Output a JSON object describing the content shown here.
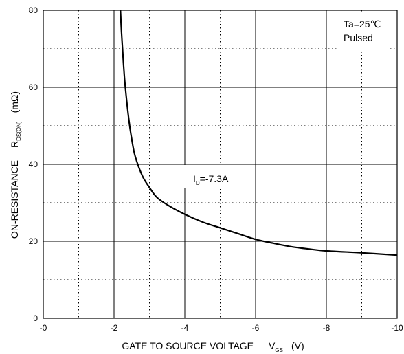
{
  "chart_data": {
    "type": "line",
    "xlabel": "GATE TO SOURCE VOLTAGE",
    "xlabel_symbol": "V",
    "xlabel_subscript": "GS",
    "xlabel_unit": "(V)",
    "ylabel": "ON-RESISTANCE",
    "ylabel_symbol": "R",
    "ylabel_subscript": "DS(ON)",
    "ylabel_unit": "(mΩ)",
    "xlim": [
      0,
      -10
    ],
    "ylim": [
      0,
      80
    ],
    "x_tick_labels": [
      "-0",
      "-2",
      "-4",
      "-6",
      "-8",
      "-10"
    ],
    "x_tick_values": [
      0,
      -2,
      -4,
      -6,
      -8,
      -10
    ],
    "y_tick_labels": [
      "0",
      "20",
      "40",
      "60",
      "80"
    ],
    "y_tick_values": [
      0,
      20,
      40,
      60,
      80
    ],
    "grid": "solid major lines at labeled ticks, dotted minor lines at midpoints",
    "annotations": [
      {
        "text": "Ta=25℃",
        "placement": "top-right"
      },
      {
        "text": "Pulsed",
        "placement": "top-right"
      }
    ],
    "series": [
      {
        "name": "",
        "label_prefix": "I",
        "label_subscript": "D",
        "label_suffix": "=-7.3A",
        "x": [
          -2.18,
          -2.22,
          -2.3,
          -2.4,
          -2.5,
          -2.6,
          -2.8,
          -3.0,
          -3.2,
          -3.5,
          -4.0,
          -4.5,
          -5.0,
          -5.5,
          -6.0,
          -6.5,
          -7.0,
          -7.5,
          -8.0,
          -9.0,
          -10.0
        ],
        "y": [
          80,
          73,
          62,
          53,
          46.5,
          42,
          37,
          34,
          31.5,
          29.5,
          27,
          25,
          23.5,
          22,
          20.5,
          19.5,
          18.6,
          18,
          17.5,
          17,
          16.4
        ]
      }
    ]
  }
}
